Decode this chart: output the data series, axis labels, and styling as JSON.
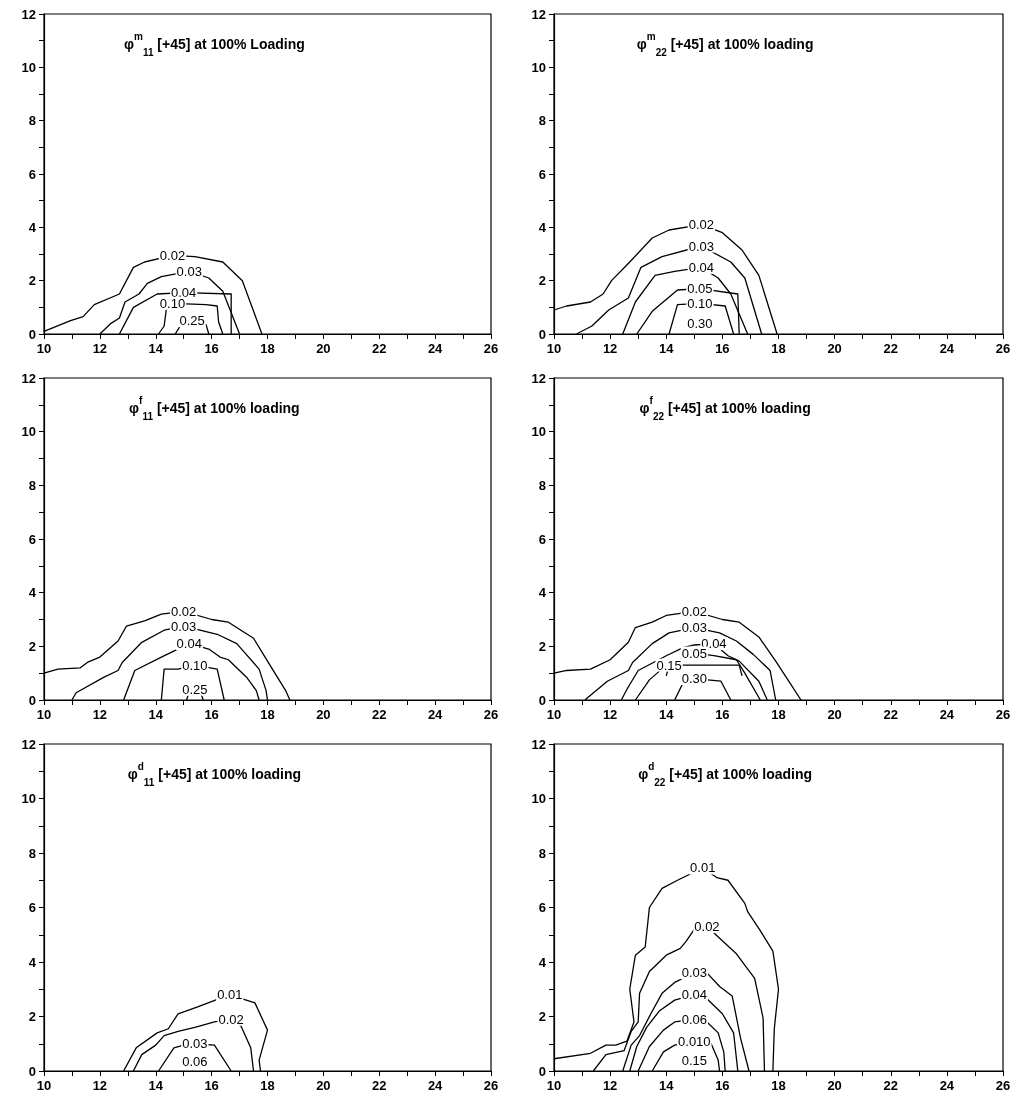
{
  "chart_data": [
    {
      "type": "line",
      "title": "φ$^{m}$$_{11}$ [+45] at 100% Loading",
      "xlim": [
        10,
        26
      ],
      "xticks": [
        10,
        {
          "value": 11,
          "label": null
        },
        12,
        {
          "value": 13,
          "label": null
        },
        14,
        {
          "value": 15,
          "label": null
        },
        16,
        {
          "value": 17,
          "label": null
        },
        18,
        {
          "value": 19,
          "label": null
        },
        20,
        {
          "value": 21,
          "label": null
        },
        22,
        {
          "value": 23,
          "label": null
        },
        24,
        {
          "value": 25,
          "label": null
        },
        26
      ],
      "ylim": [
        0,
        12
      ],
      "yticks": [
        0,
        {
          "value": 1,
          "label": null
        },
        2,
        {
          "value": 3,
          "label": null
        },
        4,
        {
          "value": 5,
          "label": null
        },
        6,
        {
          "value": 7,
          "label": null
        },
        8,
        {
          "value": 9,
          "label": null
        },
        10,
        {
          "value": 11,
          "label": null
        },
        12
      ],
      "grid": false,
      "legend": false,
      "marker": "none",
      "line_style": "solid",
      "series": [
        {
          "name": "0.02",
          "color": "#000000",
          "x": [
            10,
            10.95,
            11.4,
            11.8,
            12.7,
            13.2,
            13.6,
            14.6,
            15.4,
            16.4,
            17.1,
            17.8
          ],
          "values": [
            0.1,
            0.5,
            0.65,
            1.1,
            1.5,
            2.5,
            2.7,
            2.95,
            2.9,
            2.7,
            2.0,
            0
          ]
        },
        {
          "name": "0.03",
          "color": "#000000",
          "x": [
            12.0,
            12.4,
            12.7,
            12.9,
            13.4,
            13.7,
            14.2,
            15.2,
            15.9,
            16.4,
            17.0
          ],
          "values": [
            0,
            0.4,
            0.6,
            1.2,
            1.5,
            1.9,
            2.15,
            2.35,
            2.1,
            1.6,
            0
          ]
        },
        {
          "name": "0.04",
          "color": "#000000",
          "x": [
            12.7,
            13.2,
            14.05,
            15.0,
            16.7,
            16.7
          ],
          "values": [
            0,
            1.0,
            1.5,
            1.55,
            1.5,
            0
          ]
        },
        {
          "name": "0.10",
          "color": "#000000",
          "x": [
            14.1,
            14.3,
            14.4,
            14.6,
            15.8,
            16.2,
            16.25,
            16.4
          ],
          "values": [
            0,
            0.3,
            1.1,
            1.15,
            1.1,
            1.05,
            0.45,
            0
          ]
        },
        {
          "name": "0.25",
          "color": "#000000",
          "x": [
            14.7,
            14.9,
            15.3,
            15.8,
            15.9
          ],
          "values": [
            0,
            0.35,
            0.5,
            0.35,
            0
          ]
        }
      ]
    },
    {
      "type": "line",
      "title": "φ$^{m}$$_{22}$ [+45] at 100% loading",
      "xlim": [
        10,
        26
      ],
      "xticks": [
        10,
        {
          "value": 11,
          "label": null
        },
        12,
        {
          "value": 13,
          "label": null
        },
        14,
        {
          "value": 15,
          "label": null
        },
        16,
        {
          "value": 17,
          "label": null
        },
        18,
        {
          "value": 19,
          "label": null
        },
        20,
        {
          "value": 21,
          "label": null
        },
        22,
        {
          "value": 23,
          "label": null
        },
        24,
        {
          "value": 25,
          "label": null
        },
        26
      ],
      "ylim": [
        0,
        12
      ],
      "yticks": [
        0,
        {
          "value": 1,
          "label": null
        },
        2,
        {
          "value": 3,
          "label": null
        },
        4,
        {
          "value": 5,
          "label": null
        },
        6,
        {
          "value": 7,
          "label": null
        },
        8,
        {
          "value": 9,
          "label": null
        },
        10,
        {
          "value": 11,
          "label": null
        },
        12
      ],
      "grid": false,
      "legend": false,
      "marker": "none",
      "line_style": "solid",
      "annotations": [
        "0.30"
      ],
      "series": [
        {
          "name": "0.02",
          "color": "#000000",
          "x": [
            10,
            10.45,
            11.3,
            11.75,
            12.05,
            12.7,
            13.5,
            14.1,
            15.25,
            16.0,
            16.7,
            17.3,
            17.95
          ],
          "values": [
            0.9,
            1.05,
            1.2,
            1.5,
            2.0,
            2.7,
            3.6,
            3.9,
            4.1,
            3.8,
            3.15,
            2.2,
            0
          ]
        },
        {
          "name": "0.03",
          "color": "#000000",
          "x": [
            10.8,
            11.35,
            11.95,
            12.65,
            13.1,
            13.85,
            15.25,
            16.3,
            16.8,
            17.4
          ],
          "values": [
            0,
            0.3,
            0.9,
            1.35,
            2.5,
            2.9,
            3.3,
            2.7,
            2.1,
            0
          ]
        },
        {
          "name": "0.04",
          "color": "#000000",
          "x": [
            12.45,
            12.9,
            13.6,
            14.3,
            15.25,
            15.85,
            16.3,
            16.9
          ],
          "values": [
            0,
            1.2,
            2.2,
            2.35,
            2.5,
            2.1,
            1.5,
            0
          ]
        },
        {
          "name": "0.05",
          "color": "#000000",
          "x": [
            12.95,
            13.5,
            14.4,
            15.2,
            16.55,
            16.6
          ],
          "values": [
            0,
            0.85,
            1.65,
            1.7,
            1.5,
            0
          ]
        },
        {
          "name": "0.10",
          "color": "#000000",
          "x": [
            14.1,
            14.4,
            15.2,
            16.1,
            16.4
          ],
          "values": [
            0,
            1.1,
            1.15,
            1.05,
            0
          ]
        }
      ]
    },
    {
      "type": "line",
      "title": "φ$^{f}$$_{11}$ [+45] at 100% loading",
      "xlim": [
        10,
        26
      ],
      "xticks": [
        10,
        {
          "value": 11,
          "label": null
        },
        12,
        {
          "value": 13,
          "label": null
        },
        14,
        {
          "value": 15,
          "label": null
        },
        16,
        {
          "value": 17,
          "label": null
        },
        18,
        {
          "value": 19,
          "label": null
        },
        20,
        {
          "value": 21,
          "label": null
        },
        22,
        {
          "value": 23,
          "label": null
        },
        24,
        {
          "value": 25,
          "label": null
        },
        26
      ],
      "ylim": [
        0,
        12
      ],
      "yticks": [
        0,
        {
          "value": 1,
          "label": null
        },
        2,
        {
          "value": 3,
          "label": null
        },
        4,
        {
          "value": 5,
          "label": null
        },
        6,
        {
          "value": 7,
          "label": null
        },
        8,
        {
          "value": 9,
          "label": null
        },
        10,
        {
          "value": 11,
          "label": null
        },
        12
      ],
      "grid": false,
      "legend": false,
      "marker": "none",
      "line_style": "solid",
      "series": [
        {
          "name": "0.02",
          "color": "#000000",
          "x": [
            10,
            10.5,
            11.3,
            11.55,
            12.0,
            12.65,
            12.95,
            13.6,
            14.2,
            15.0,
            16.0,
            16.6,
            17.5,
            18.0,
            18.65,
            18.8
          ],
          "values": [
            1.0,
            1.15,
            1.2,
            1.4,
            1.6,
            2.2,
            2.75,
            2.95,
            3.2,
            3.3,
            3.0,
            2.9,
            2.3,
            1.45,
            0.35,
            0
          ]
        },
        {
          "name": "0.03",
          "color": "#000000",
          "x": [
            11.0,
            11.15,
            12.15,
            12.65,
            12.8,
            13.5,
            14.3,
            15.0,
            16.2,
            16.9,
            17.7,
            17.95,
            18.0
          ],
          "values": [
            0,
            0.27,
            0.85,
            1.1,
            1.4,
            2.15,
            2.6,
            2.75,
            2.45,
            2.1,
            1.15,
            0.35,
            0
          ]
        },
        {
          "name": "0.04",
          "color": "#000000",
          "x": [
            12.85,
            13.25,
            14.2,
            14.7,
            15.2,
            15.9,
            16.3,
            16.6,
            17.25,
            17.6,
            17.7
          ],
          "values": [
            0,
            1.1,
            1.6,
            1.85,
            2.1,
            1.9,
            1.6,
            1.5,
            0.85,
            0.35,
            0
          ]
        },
        {
          "name": "0.10",
          "color": "#000000",
          "x": [
            14.2,
            14.3,
            14.8,
            15.4,
            16.2,
            16.45
          ],
          "values": [
            0,
            1.15,
            1.15,
            1.3,
            1.15,
            0
          ]
        },
        {
          "name": "0.25",
          "color": "#000000",
          "x": [
            15.1,
            15.2,
            15.4,
            15.6,
            15.7
          ],
          "values": [
            0,
            0.3,
            0.4,
            0.3,
            0
          ]
        }
      ]
    },
    {
      "type": "line",
      "title": "φ$^{f}$$_{22}$ [+45] at 100% loading",
      "xlim": [
        10,
        26
      ],
      "xticks": [
        10,
        {
          "value": 11,
          "label": null
        },
        12,
        {
          "value": 13,
          "label": null
        },
        14,
        {
          "value": 15,
          "label": null
        },
        16,
        {
          "value": 17,
          "label": null
        },
        18,
        {
          "value": 19,
          "label": null
        },
        20,
        {
          "value": 21,
          "label": null
        },
        22,
        {
          "value": 23,
          "label": null
        },
        24,
        {
          "value": 25,
          "label": null
        },
        26
      ],
      "ylim": [
        0,
        12
      ],
      "yticks": [
        0,
        {
          "value": 1,
          "label": null
        },
        2,
        {
          "value": 3,
          "label": null
        },
        4,
        {
          "value": 5,
          "label": null
        },
        6,
        {
          "value": 7,
          "label": null
        },
        8,
        {
          "value": 9,
          "label": null
        },
        10,
        {
          "value": 11,
          "label": null
        },
        12
      ],
      "grid": false,
      "legend": false,
      "marker": "none",
      "line_style": "solid",
      "series": [
        {
          "name": "0.02",
          "color": "#000000",
          "x": [
            10,
            10.45,
            11.3,
            12.0,
            12.65,
            12.9,
            13.5,
            14.0,
            15.0,
            16.0,
            16.6,
            17.3,
            17.9,
            18.4,
            18.8
          ],
          "values": [
            1.0,
            1.1,
            1.15,
            1.5,
            2.15,
            2.7,
            2.9,
            3.15,
            3.3,
            3.0,
            2.9,
            2.35,
            1.45,
            0.65,
            0
          ]
        },
        {
          "name": "0.03",
          "color": "#000000",
          "x": [
            11.1,
            11.9,
            12.65,
            12.8,
            13.5,
            14.1,
            15.0,
            15.9,
            16.5,
            17.1,
            17.7,
            17.9
          ],
          "values": [
            0,
            0.7,
            1.1,
            1.4,
            2.1,
            2.5,
            2.7,
            2.5,
            2.2,
            1.7,
            1.1,
            0
          ]
        },
        {
          "name": "0.04",
          "color": "#000000",
          "x": [
            12.4,
            12.6,
            13.0,
            14.0,
            14.6,
            15.0,
            15.7,
            16.2,
            16.6,
            17.3,
            17.6
          ],
          "values": [
            0,
            0.4,
            1.1,
            1.65,
            1.95,
            2.05,
            2.1,
            1.65,
            1.45,
            0.7,
            0
          ]
        },
        {
          "name": "0.05",
          "color": "#000000",
          "x": [
            12.9,
            13.4,
            14.0,
            14.8,
            15.0,
            15.7,
            16.5,
            16.8,
            17.35
          ],
          "values": [
            0,
            0.75,
            1.3,
            1.65,
            1.75,
            1.65,
            1.5,
            1.0,
            0
          ]
        },
        {
          "name": "0.15",
          "color": "#000000",
          "x": [
            14.0,
            14.1,
            15.0,
            16.6,
            16.7
          ],
          "values": [
            0.9,
            1.3,
            1.3,
            1.3,
            0.9
          ]
        },
        {
          "name": "0.30",
          "color": "#000000",
          "x": [
            14.3,
            14.65,
            15.0,
            15.95,
            16.3
          ],
          "values": [
            0,
            0.75,
            0.8,
            0.7,
            0
          ]
        }
      ]
    },
    {
      "type": "line",
      "title": "φ$^{d}$$_{11}$ [+45] at 100% loading",
      "xlim": [
        10,
        26
      ],
      "xticks": [
        10,
        {
          "value": 11,
          "label": null
        },
        12,
        {
          "value": 13,
          "label": null
        },
        14,
        {
          "value": 15,
          "label": null
        },
        16,
        {
          "value": 17,
          "label": null
        },
        18,
        {
          "value": 19,
          "label": null
        },
        20,
        {
          "value": 21,
          "label": null
        },
        22,
        {
          "value": 23,
          "label": null
        },
        24,
        {
          "value": 25,
          "label": null
        },
        26
      ],
      "ylim": [
        0,
        12
      ],
      "yticks": [
        0,
        {
          "value": 1,
          "label": null
        },
        2,
        {
          "value": 3,
          "label": null
        },
        4,
        {
          "value": 5,
          "label": null
        },
        6,
        {
          "value": 7,
          "label": null
        },
        8,
        {
          "value": 9,
          "label": null
        },
        10,
        {
          "value": 11,
          "label": null
        },
        12
      ],
      "grid": false,
      "legend": false,
      "marker": "none",
      "line_style": "solid",
      "annotations": [
        "0.06"
      ],
      "series": [
        {
          "name": "0.01",
          "color": "#000000",
          "x": [
            12.85,
            13.3,
            14.05,
            14.45,
            14.8,
            15.5,
            16.65,
            17.1,
            17.55,
            18.0,
            17.7,
            17.75
          ],
          "values": [
            0,
            0.85,
            1.4,
            1.55,
            2.1,
            2.35,
            2.8,
            2.65,
            2.5,
            1.5,
            0.4,
            0
          ]
        },
        {
          "name": "0.02",
          "color": "#000000",
          "x": [
            13.2,
            13.5,
            14.0,
            14.3,
            14.8,
            15.4,
            16.1,
            16.7,
            17.05,
            17.4,
            17.5
          ],
          "values": [
            0,
            0.6,
            0.95,
            1.3,
            1.45,
            1.6,
            1.8,
            1.9,
            1.65,
            0.85,
            0
          ]
        },
        {
          "name": "0.03",
          "color": "#000000",
          "x": [
            14.1,
            14.65,
            15.0,
            15.4,
            16.1,
            16.7
          ],
          "values": [
            0,
            0.85,
            0.95,
            1.0,
            0.95,
            0
          ]
        }
      ]
    },
    {
      "type": "line",
      "title": "φ$^{d}$$_{22}$ [+45] at 100% loading",
      "xlim": [
        10,
        26
      ],
      "xticks": [
        10,
        {
          "value": 11,
          "label": null
        },
        12,
        {
          "value": 13,
          "label": null
        },
        14,
        {
          "value": 15,
          "label": null
        },
        16,
        {
          "value": 17,
          "label": null
        },
        18,
        {
          "value": 19,
          "label": null
        },
        20,
        {
          "value": 21,
          "label": null
        },
        22,
        {
          "value": 23,
          "label": null
        },
        24,
        {
          "value": 25,
          "label": null
        },
        26
      ],
      "ylim": [
        0,
        12
      ],
      "yticks": [
        0,
        {
          "value": 1,
          "label": null
        },
        2,
        {
          "value": 3,
          "label": null
        },
        4,
        {
          "value": 5,
          "label": null
        },
        6,
        {
          "value": 7,
          "label": null
        },
        8,
        {
          "value": 9,
          "label": null
        },
        10,
        {
          "value": 11,
          "label": null
        },
        12
      ],
      "grid": false,
      "legend": false,
      "marker": "none",
      "line_style": "solid",
      "annotations": [
        "0.15"
      ],
      "series": [
        {
          "name": "0.01",
          "color": "#000000",
          "x": [
            10,
            11.3,
            11.85,
            12.2,
            12.6,
            12.85,
            12.7,
            12.9,
            13.25,
            13.4,
            13.85,
            14.4,
            15.3,
            15.8,
            16.2,
            16.8,
            16.9,
            17.35,
            17.8,
            18.0,
            17.85,
            17.8
          ],
          "values": [
            0.45,
            0.65,
            0.95,
            0.95,
            1.1,
            1.8,
            3.0,
            4.25,
            4.55,
            6.0,
            6.7,
            7.0,
            7.45,
            7.1,
            7.0,
            6.15,
            5.85,
            5.15,
            4.4,
            3.0,
            1.55,
            0
          ]
        },
        {
          "name": "0.02",
          "color": "#000000",
          "x": [
            11.4,
            11.85,
            12.5,
            12.75,
            13.0,
            13.05,
            13.4,
            14.0,
            14.5,
            14.7,
            15.0,
            15.45,
            16.5,
            17.15,
            17.45,
            17.5
          ],
          "values": [
            0,
            0.6,
            0.75,
            1.45,
            1.8,
            2.85,
            3.65,
            4.25,
            4.5,
            4.75,
            5.2,
            5.3,
            4.3,
            3.4,
            1.95,
            0
          ]
        },
        {
          "name": "0.03",
          "color": "#000000",
          "x": [
            12.45,
            12.75,
            13.05,
            13.45,
            13.85,
            14.3,
            15.0,
            15.45,
            15.9,
            16.35,
            16.65,
            16.95
          ],
          "values": [
            0,
            0.95,
            1.3,
            2.1,
            2.85,
            3.25,
            3.6,
            3.6,
            3.1,
            2.75,
            1.2,
            0
          ]
        },
        {
          "name": "0.04",
          "color": "#000000",
          "x": [
            12.7,
            12.95,
            13.3,
            13.75,
            14.3,
            15.0,
            15.45,
            16.0,
            16.4,
            16.55
          ],
          "values": [
            0,
            0.9,
            1.6,
            2.2,
            2.6,
            2.8,
            2.65,
            2.1,
            1.4,
            0
          ]
        },
        {
          "name": "0.06",
          "color": "#000000",
          "x": [
            13.0,
            13.4,
            13.9,
            14.3,
            15.0,
            15.45,
            15.85,
            16.05,
            16.1
          ],
          "values": [
            0,
            0.9,
            1.5,
            1.8,
            1.9,
            1.8,
            1.4,
            0.7,
            0
          ]
        },
        {
          "name": "0.010",
          "color": "#000000",
          "x": [
            13.5,
            13.9,
            14.3,
            15.0,
            15.6,
            15.85,
            15.9
          ],
          "values": [
            0,
            0.7,
            0.95,
            1.1,
            1.0,
            0.4,
            0
          ]
        }
      ]
    }
  ]
}
